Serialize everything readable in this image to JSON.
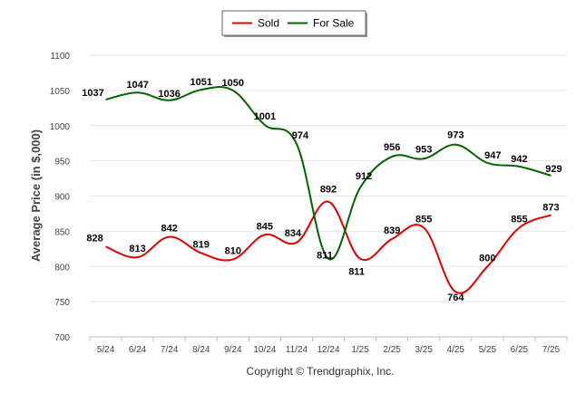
{
  "chart_data": {
    "type": "line",
    "categories": [
      "5/24",
      "6/24",
      "7/24",
      "8/24",
      "9/24",
      "10/24",
      "11/24",
      "12/24",
      "1/25",
      "2/25",
      "3/25",
      "4/25",
      "5/25",
      "6/25",
      "7/25"
    ],
    "series": [
      {
        "name": "Sold",
        "color": "#e00000",
        "values": [
          828,
          813,
          842,
          819,
          810,
          845,
          834,
          892,
          811,
          839,
          855,
          764,
          800,
          855,
          873
        ]
      },
      {
        "name": "For Sale",
        "color": "#006400",
        "values": [
          1037,
          1047,
          1036,
          1051,
          1050,
          1001,
          974,
          811,
          912,
          956,
          953,
          973,
          947,
          942,
          929
        ]
      }
    ],
    "ylabel": "Average Price (in $,000)",
    "yticks": [
      "700",
      "750",
      "800",
      "850",
      "900",
      "950",
      "1000",
      "1050",
      "1100"
    ],
    "ylim": [
      700,
      1100
    ],
    "grid": true,
    "legend_position": "top-center"
  },
  "footer": {
    "text": "Copyright © Trendgraphix, Inc."
  }
}
